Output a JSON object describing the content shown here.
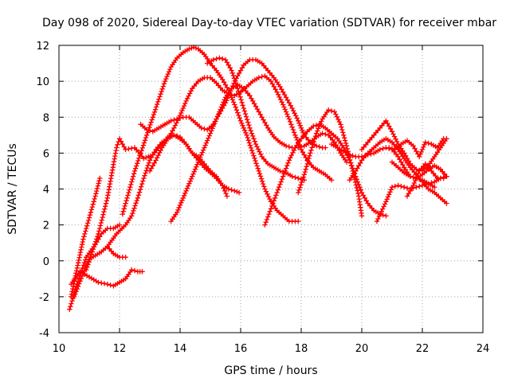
{
  "chart_data": {
    "type": "scatter",
    "title": "Day 098 of 2020, Sidereal Day-to-day VTEC variation (SDTVAR) for receiver mbar",
    "xlabel": "GPS time / hours",
    "ylabel": "SDTVAR / TECUs",
    "xlim": [
      10,
      24
    ],
    "ylim": [
      -4,
      12
    ],
    "xticks": [
      10,
      12,
      14,
      16,
      18,
      20,
      22,
      24
    ],
    "yticks": [
      -4,
      -2,
      0,
      2,
      4,
      6,
      8,
      10,
      12
    ],
    "grid": true,
    "marker": "+",
    "color": "#ff0000",
    "series": [
      {
        "name": "s1",
        "x": [
          10.35,
          10.6,
          10.9,
          11.2,
          11.4,
          11.6,
          11.8,
          12.0
        ],
        "y": [
          -2.7,
          -1.3,
          0.2,
          0.9,
          1.5,
          1.8,
          1.8,
          2.0
        ]
      },
      {
        "name": "s2",
        "x": [
          10.4,
          10.7,
          11.0,
          11.3,
          11.6,
          11.8,
          12.0,
          12.2,
          12.4,
          12.6,
          12.75
        ],
        "y": [
          -1.3,
          -0.6,
          -0.9,
          -1.2,
          -1.3,
          -1.4,
          -1.2,
          -1.0,
          -0.5,
          -0.6,
          -0.6
        ]
      },
      {
        "name": "s3",
        "x": [
          10.5,
          10.8,
          11.0,
          11.2,
          11.4,
          11.6,
          11.8,
          12.0,
          12.2
        ],
        "y": [
          -2.0,
          -0.7,
          0.1,
          0.3,
          0.5,
          0.8,
          0.4,
          0.2,
          0.2
        ]
      },
      {
        "name": "s4",
        "x": [
          10.4,
          10.6,
          10.8,
          11.0,
          11.2,
          11.35
        ],
        "y": [
          -2.0,
          -0.4,
          1.2,
          2.4,
          3.6,
          4.6
        ]
      },
      {
        "name": "s5",
        "x": [
          10.9,
          11.3,
          11.6,
          11.9,
          12.0,
          12.2,
          12.5,
          12.8,
          13.1,
          13.4,
          13.6,
          13.8,
          14.0,
          14.2,
          14.4,
          14.6,
          14.8,
          15.0,
          15.2,
          15.4,
          15.6,
          15.8,
          15.95
        ],
        "y": [
          -0.5,
          1.5,
          3.5,
          6.3,
          6.8,
          6.2,
          6.3,
          5.7,
          5.9,
          6.5,
          6.9,
          7.0,
          6.8,
          6.5,
          6.0,
          5.6,
          5.2,
          4.9,
          4.6,
          4.2,
          4.0,
          3.9,
          3.8
        ]
      },
      {
        "name": "s6",
        "x": [
          11.6,
          11.9,
          12.2,
          12.4,
          12.6,
          12.8,
          13.0,
          13.2,
          13.4,
          13.6,
          13.8,
          14.0,
          14.2,
          14.4,
          14.6,
          14.8,
          15.0,
          15.2,
          15.4,
          15.55
        ],
        "y": [
          0.8,
          1.5,
          2.0,
          2.5,
          3.5,
          4.6,
          5.6,
          6.2,
          6.6,
          6.8,
          7.0,
          6.9,
          6.5,
          6.0,
          5.8,
          5.4,
          5.0,
          4.7,
          4.2,
          3.6
        ]
      },
      {
        "name": "s7",
        "x": [
          12.1,
          12.3,
          12.5,
          12.7,
          12.9,
          13.1,
          13.3,
          13.5,
          13.7,
          13.9,
          14.1,
          14.3,
          14.45,
          14.6,
          14.8,
          15.0,
          15.2,
          15.4,
          15.6,
          15.8,
          16.0,
          16.2,
          16.4,
          16.6,
          16.8,
          17.0,
          17.2,
          17.4,
          17.6,
          17.8,
          17.9
        ],
        "y": [
          2.6,
          3.8,
          5.0,
          6.0,
          7.0,
          8.0,
          9.0,
          10.0,
          10.8,
          11.3,
          11.6,
          11.8,
          11.9,
          11.8,
          11.5,
          11.0,
          10.6,
          10.1,
          9.5,
          8.7,
          7.8,
          7.0,
          6.0,
          5.0,
          4.0,
          3.3,
          2.8,
          2.5,
          2.2,
          2.2,
          2.2
        ]
      },
      {
        "name": "s8",
        "x": [
          12.7,
          12.9,
          13.1,
          13.3,
          13.5,
          13.7,
          13.9,
          14.1,
          14.3,
          14.5,
          14.7,
          14.9,
          15.1,
          15.3,
          15.5,
          15.7,
          15.9,
          16.1,
          16.3,
          16.5,
          16.7,
          16.9,
          17.1,
          17.3,
          17.5,
          17.7,
          17.9,
          18.1,
          18.3,
          18.5,
          18.7,
          18.8
        ],
        "y": [
          7.6,
          7.3,
          7.2,
          7.4,
          7.6,
          7.8,
          7.9,
          8.0,
          8.0,
          7.7,
          7.4,
          7.3,
          7.6,
          8.2,
          8.8,
          9.6,
          10.3,
          10.9,
          11.2,
          11.2,
          11.0,
          10.6,
          10.2,
          9.7,
          9.1,
          8.5,
          7.8,
          7.0,
          6.6,
          6.4,
          6.3,
          6.3
        ]
      },
      {
        "name": "s9",
        "x": [
          13.0,
          13.2,
          13.4,
          13.6,
          13.8,
          14.0,
          14.2,
          14.4,
          14.6,
          14.8,
          15.0,
          15.2,
          15.4,
          15.6,
          15.8,
          16.0,
          16.2,
          16.4,
          16.6,
          16.8,
          17.0,
          17.2,
          17.4,
          17.6,
          17.8,
          18.0,
          18.2,
          18.4,
          18.6,
          18.8,
          19.0
        ],
        "y": [
          5.0,
          5.6,
          6.3,
          6.8,
          7.4,
          8.1,
          8.9,
          9.6,
          10.0,
          10.2,
          10.2,
          9.9,
          9.5,
          9.3,
          9.2,
          9.4,
          9.7,
          10.0,
          10.2,
          10.3,
          10.0,
          9.4,
          8.7,
          7.9,
          7.0,
          6.2,
          5.6,
          5.2,
          5.0,
          4.8,
          4.5
        ]
      },
      {
        "name": "s10",
        "x": [
          13.7,
          13.9,
          14.1,
          14.3,
          14.5,
          14.7,
          14.9,
          15.1,
          15.3,
          15.5,
          15.7,
          15.9,
          16.1,
          16.3,
          16.5,
          16.7,
          16.9,
          17.1,
          17.3,
          17.5,
          17.7,
          17.9,
          18.1,
          18.3,
          18.5,
          18.7,
          18.9,
          19.1,
          19.3,
          19.5
        ],
        "y": [
          2.2,
          2.7,
          3.5,
          4.3,
          5.1,
          5.9,
          6.7,
          7.5,
          8.3,
          9.1,
          9.6,
          9.8,
          9.6,
          9.2,
          8.6,
          8.0,
          7.4,
          6.9,
          6.6,
          6.4,
          6.3,
          6.3,
          6.4,
          6.6,
          6.9,
          7.1,
          7.0,
          6.6,
          6.0,
          5.5
        ]
      },
      {
        "name": "s11",
        "x": [
          14.9,
          15.1,
          15.3,
          15.5,
          15.7,
          15.9,
          16.1,
          16.3,
          16.5,
          16.7,
          16.9,
          17.1,
          17.3,
          17.5,
          17.7,
          17.9,
          18.1
        ],
        "y": [
          11.0,
          11.2,
          11.3,
          11.2,
          10.6,
          9.6,
          8.5,
          7.4,
          6.5,
          5.8,
          5.4,
          5.2,
          5.0,
          4.9,
          4.7,
          4.6,
          4.5
        ]
      },
      {
        "name": "s12",
        "x": [
          16.8,
          17.0,
          17.2,
          17.4,
          17.6,
          17.8,
          18.0,
          18.2,
          18.4,
          18.6,
          18.8,
          19.0,
          19.2,
          19.4,
          19.6,
          19.8,
          20.0,
          20.2,
          20.4,
          20.6,
          20.8
        ],
        "y": [
          2.0,
          2.9,
          3.8,
          4.7,
          5.6,
          6.3,
          6.8,
          7.2,
          7.5,
          7.6,
          7.4,
          7.1,
          6.8,
          6.3,
          5.6,
          4.7,
          3.8,
          3.2,
          2.8,
          2.6,
          2.5
        ]
      },
      {
        "name": "s13",
        "x": [
          17.9,
          18.1,
          18.3,
          18.5,
          18.7,
          18.9,
          19.1,
          19.3,
          19.5,
          19.7,
          19.9,
          20.0
        ],
        "y": [
          3.8,
          4.8,
          6.0,
          7.1,
          7.9,
          8.4,
          8.3,
          7.6,
          6.4,
          5.0,
          3.6,
          2.5
        ]
      },
      {
        "name": "s14",
        "x": [
          19.0,
          19.2,
          19.4,
          19.6,
          19.8,
          20.0,
          20.2,
          20.4,
          20.6,
          20.8,
          21.0,
          21.2,
          21.4,
          21.6,
          21.8,
          22.0,
          22.2,
          22.4,
          22.6,
          22.8
        ],
        "y": [
          6.5,
          6.3,
          6.1,
          5.9,
          5.8,
          5.8,
          5.9,
          6.0,
          6.2,
          6.3,
          6.2,
          5.8,
          5.2,
          4.7,
          4.6,
          4.8,
          5.1,
          5.3,
          5.1,
          4.7
        ]
      },
      {
        "name": "s15",
        "x": [
          19.6,
          19.8,
          20.0,
          20.2,
          20.4,
          20.6,
          20.8,
          21.0,
          21.2,
          21.4,
          21.6,
          21.8,
          22.0,
          22.2,
          22.4,
          22.6,
          22.8
        ],
        "y": [
          4.5,
          5.0,
          5.6,
          6.0,
          6.3,
          6.6,
          6.8,
          6.6,
          6.2,
          5.7,
          5.2,
          4.8,
          4.4,
          4.0,
          3.8,
          3.5,
          3.2
        ]
      },
      {
        "name": "s16",
        "x": [
          20.0,
          20.2,
          20.4,
          20.6,
          20.8,
          21.0,
          21.2,
          21.4,
          21.6,
          21.8,
          22.0,
          22.2,
          22.4,
          22.6,
          22.8
        ],
        "y": [
          6.2,
          6.6,
          7.0,
          7.4,
          7.8,
          7.2,
          6.5,
          6.0,
          5.4,
          5.1,
          5.0,
          5.3,
          5.8,
          6.3,
          6.8
        ]
      },
      {
        "name": "s17",
        "x": [
          20.5,
          20.8,
          21.0,
          21.2,
          21.4,
          21.6,
          21.8,
          22.0,
          22.2,
          22.4,
          22.6,
          22.8
        ],
        "y": [
          2.2,
          3.3,
          4.1,
          4.2,
          4.1,
          4.0,
          4.1,
          4.2,
          4.3,
          4.4,
          4.6,
          4.7
        ]
      },
      {
        "name": "s18",
        "x": [
          20.9,
          21.1,
          21.3,
          21.5,
          21.7,
          21.9,
          22.1,
          22.3,
          22.5,
          22.7
        ],
        "y": [
          6.3,
          6.2,
          6.5,
          6.7,
          6.4,
          5.8,
          6.6,
          6.5,
          6.3,
          6.8
        ]
      },
      {
        "name": "s19",
        "x": [
          21.5,
          21.7,
          21.9,
          22.1,
          22.3,
          22.5,
          22.7,
          22.8
        ],
        "y": [
          3.6,
          4.2,
          5.0,
          5.4,
          5.0,
          4.6,
          4.6,
          4.7
        ]
      },
      {
        "name": "s20",
        "x": [
          21.0,
          21.2,
          21.4,
          21.6,
          21.8,
          22.0,
          22.2,
          22.4
        ],
        "y": [
          5.5,
          5.2,
          4.9,
          4.7,
          4.6,
          4.5,
          4.3,
          4.1
        ]
      }
    ]
  }
}
